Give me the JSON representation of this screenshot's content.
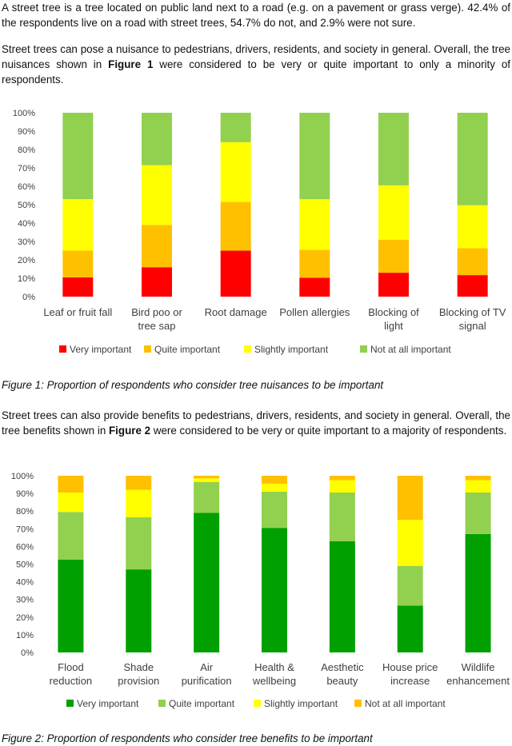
{
  "intro": {
    "p1": "A street tree is a tree located on public land next to a road (e.g. on a pavement or grass verge). 42.4% of the respondents live on a road with street trees, 54.7% do not, and 2.9% were not sure.",
    "p2_a": "Street trees can pose a nuisance to pedestrians, drivers, residents, and society in general. Overall, the tree nuisances shown in ",
    "p2_bold": "Figure 1",
    "p2_b": " were considered to be very or quite important to only a minority of respondents."
  },
  "caption1": "Figure 1: Proportion of respondents who consider tree nuisances to be important",
  "mid": {
    "p_a": "Street trees can also provide benefits to pedestrians, drivers, residents, and society in general. Overall, the tree benefits shown in ",
    "p_bold": "Figure 2",
    "p_b": " were considered to be very or quite important to a majority of respondents."
  },
  "caption2": "Figure 2: Proportion of respondents who consider tree benefits to be important",
  "chart_data": [
    {
      "type": "bar",
      "stacked": true,
      "ylim": [
        0,
        100
      ],
      "yticks": [
        "0%",
        "10%",
        "20%",
        "30%",
        "40%",
        "50%",
        "60%",
        "70%",
        "80%",
        "90%",
        "100%"
      ],
      "categories": [
        [
          "Leaf or fruit fall"
        ],
        [
          "Bird poo or",
          "tree sap"
        ],
        [
          "Root damage"
        ],
        [
          "Pollen allergies"
        ],
        [
          "Blocking of",
          "light"
        ],
        [
          "Blocking of TV",
          "signal"
        ]
      ],
      "series": [
        {
          "name": "Very important",
          "color": "#ff0000",
          "values": [
            10.5,
            16,
            25,
            10.3,
            13,
            11.7
          ]
        },
        {
          "name": "Quite important",
          "color": "#ffc000",
          "values": [
            14.5,
            23,
            26.5,
            15.2,
            18,
            14.6
          ]
        },
        {
          "name": "Slightly important",
          "color": "#ffff00",
          "values": [
            28,
            32.5,
            32.5,
            27.5,
            29.5,
            23.4
          ]
        },
        {
          "name": "Not at all important",
          "color": "#92d050",
          "values": [
            47,
            28.5,
            16,
            47,
            39.5,
            50.3
          ]
        }
      ],
      "legend_position": "bottom",
      "grid": false
    },
    {
      "type": "bar",
      "stacked": true,
      "ylim": [
        0,
        100
      ],
      "yticks": [
        "0%",
        "10%",
        "20%",
        "30%",
        "40%",
        "50%",
        "60%",
        "70%",
        "80%",
        "90%",
        "100%"
      ],
      "categories": [
        [
          "Flood",
          "reduction"
        ],
        [
          "Shade",
          "provision"
        ],
        [
          "Air",
          "purification"
        ],
        [
          "Health &",
          "wellbeing"
        ],
        [
          "Aesthetic",
          "beauty"
        ],
        [
          "House price",
          "increase"
        ],
        [
          "Wildlife",
          "enhancement"
        ]
      ],
      "series": [
        {
          "name": "Very important",
          "color": "#00a000",
          "values": [
            52.5,
            47,
            79,
            70.5,
            63,
            26.5,
            67
          ]
        },
        {
          "name": "Quite important",
          "color": "#92d050",
          "values": [
            27,
            29.5,
            17.5,
            20.5,
            27.5,
            22.5,
            23.5
          ]
        },
        {
          "name": "Slightly important",
          "color": "#ffff00",
          "values": [
            11,
            15.5,
            2,
            4.5,
            7,
            26,
            7
          ]
        },
        {
          "name": "Not at all important",
          "color": "#ffc000",
          "values": [
            9.5,
            8,
            1.5,
            4.5,
            2.5,
            25,
            2.5
          ]
        }
      ],
      "legend_position": "bottom",
      "grid": false
    }
  ]
}
